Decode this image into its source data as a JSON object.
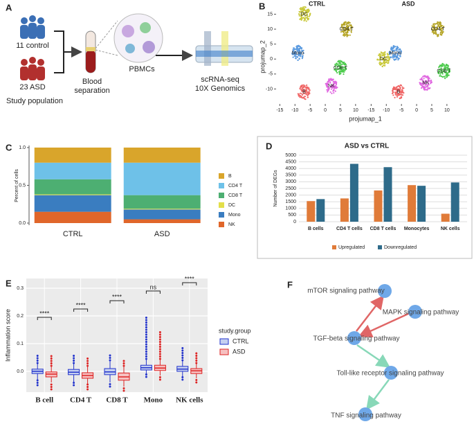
{
  "panel_labels": [
    "A",
    "B",
    "C",
    "D",
    "E",
    "F"
  ],
  "panel_a": {
    "control": "11 control",
    "asd": "23 ASD",
    "population": "Study population",
    "blood": [
      "Blood",
      "separation"
    ],
    "pbmc": "PBMCs",
    "seq": [
      "scRNA-seq",
      "10X Genomics"
    ]
  },
  "panel_f": {
    "nodes": [
      "mTOR signaling pathway",
      "MAPK signaling pathway",
      "TGF-beta signaling pathway",
      "Toll-like receptor signaling pathway",
      "TNF signaling pathway"
    ]
  },
  "chart_data": [
    {
      "type": "scatter",
      "xlabel": "projumap_1",
      "ylabel": "projumap_2",
      "xlim": [
        -16,
        13
      ],
      "ylim": [
        -15,
        16.5
      ],
      "xticks": [
        -15,
        -10,
        -5,
        0,
        5,
        10
      ],
      "yticks": [
        -10,
        -5,
        0,
        5,
        10,
        15
      ],
      "facets": [
        {
          "name": "CTRL",
          "clusters": [
            {
              "label": "DC",
              "x": -7,
              "y": 15,
              "color": "#c9c93a"
            },
            {
              "label": "CD4 T",
              "x": 7,
              "y": 10,
              "color": "#b5a526"
            },
            {
              "label": "Mono",
              "x": -9,
              "y": 2,
              "color": "#5b9be0"
            },
            {
              "label": "CD8 T",
              "x": 5,
              "y": -3,
              "color": "#4ccb4c"
            },
            {
              "label": "NK",
              "x": 2,
              "y": -9,
              "color": "#e066e0"
            },
            {
              "label": "B",
              "x": -7,
              "y": -11,
              "color": "#f06666"
            }
          ]
        },
        {
          "name": "ASD",
          "clusters": [
            {
              "label": "CD4 T",
              "x": 7,
              "y": 10,
              "color": "#b5a526"
            },
            {
              "label": "DC",
              "x": -11,
              "y": 0,
              "color": "#c9c93a"
            },
            {
              "label": "Mono",
              "x": -7,
              "y": 2,
              "color": "#5b9be0"
            },
            {
              "label": "CD8 T",
              "x": 9,
              "y": -4,
              "color": "#4ccb4c"
            },
            {
              "label": "NK",
              "x": 3,
              "y": -8,
              "color": "#e066e0"
            },
            {
              "label": "B",
              "x": -6,
              "y": -11,
              "color": "#f06666"
            }
          ]
        }
      ]
    },
    {
      "type": "stacked_bar",
      "ylabel": "Percent of cells",
      "categories": [
        "CTRL",
        "ASD"
      ],
      "ylim": [
        0,
        1
      ],
      "yticks": [
        {
          "value": 0,
          "label": "0.0"
        },
        {
          "value": 0.5,
          "label": "0.5"
        },
        {
          "value": 1,
          "label": "1.0"
        }
      ],
      "series": [
        {
          "name": "B",
          "color": "#d9a52b",
          "values": [
            0.2,
            0.2
          ]
        },
        {
          "name": "CD4 T",
          "color": "#6ec1e8",
          "values": [
            0.22,
            0.43
          ]
        },
        {
          "name": "CD8 T",
          "color": "#4daf72",
          "values": [
            0.2,
            0.18
          ]
        },
        {
          "name": "DC",
          "color": "#e3df4a",
          "values": [
            0.01,
            0.01
          ]
        },
        {
          "name": "Mono",
          "color": "#3a7dc0",
          "values": [
            0.22,
            0.13
          ]
        },
        {
          "name": "NK",
          "color": "#e0662a",
          "values": [
            0.15,
            0.05
          ]
        }
      ]
    },
    {
      "type": "bar",
      "title": "ASD vs CTRL",
      "ylabel": "Number of DEGs",
      "categories": [
        "B cells",
        "CD4 T cells",
        "CD8 T cells",
        "Monocytes",
        "NK cells"
      ],
      "ylim": [
        0,
        5000
      ],
      "yticks": [
        0,
        500,
        1000,
        1500,
        2000,
        2500,
        3000,
        3500,
        4000,
        4500,
        5000
      ],
      "grid": true,
      "series": [
        {
          "name": "Upregulated",
          "color": "#e07b39",
          "values": [
            1550,
            1750,
            2350,
            2750,
            600
          ]
        },
        {
          "name": "Downregulated",
          "color": "#2e6b8a",
          "values": [
            1700,
            4350,
            4100,
            2700,
            2950
          ]
        }
      ]
    },
    {
      "type": "box",
      "ylabel": "Inflammation score",
      "legend_title": "study.group",
      "categories": [
        "B cell",
        "CD4 T",
        "CD8 T",
        "Mono",
        "NK cells"
      ],
      "ylim": [
        -0.075,
        0.335
      ],
      "yticks": [
        {
          "value": 0,
          "label": "0.0"
        },
        0.1,
        0.2,
        0.3
      ],
      "grid": true,
      "annotations": [
        {
          "text": "****",
          "y": 0.195
        },
        {
          "text": "****",
          "y": 0.225
        },
        {
          "text": "****",
          "y": 0.255
        },
        {
          "text": "ns",
          "y": 0.29
        },
        {
          "text": "****",
          "y": 0.32
        }
      ],
      "series": [
        {
          "name": "CTRL",
          "color": "#2233cc",
          "fill": "#c5d0f0",
          "boxes": [
            {
              "low": -0.03,
              "q1": -0.008,
              "median": 0,
              "q3": 0.008,
              "high": 0.03,
              "outliers": [
                -0.05,
                0.06
              ]
            },
            {
              "low": -0.04,
              "q1": -0.012,
              "median": -0.003,
              "q3": 0.007,
              "high": 0.03,
              "outliers": [
                -0.05,
                0.06
              ]
            },
            {
              "low": -0.04,
              "q1": -0.012,
              "median": -0.002,
              "q3": 0.01,
              "high": 0.04,
              "outliers": [
                -0.055,
                0.06
              ]
            },
            {
              "low": -0.01,
              "q1": 0.005,
              "median": 0.013,
              "q3": 0.022,
              "high": 0.045,
              "outliers": [
                -0.02,
                0.2
              ]
            },
            {
              "low": -0.02,
              "q1": 0,
              "median": 0.008,
              "q3": 0.018,
              "high": 0.04,
              "outliers": [
                -0.03,
                0.09
              ]
            }
          ]
        },
        {
          "name": "ASD",
          "color": "#dd2222",
          "fill": "#f6c0c0",
          "boxes": [
            {
              "low": -0.04,
              "q1": -0.02,
              "median": -0.01,
              "q3": -0.002,
              "high": 0.02,
              "outliers": [
                -0.065,
                0.06
              ]
            },
            {
              "low": -0.045,
              "q1": -0.025,
              "median": -0.015,
              "q3": -0.005,
              "high": 0.02,
              "outliers": [
                -0.065,
                0.05
              ]
            },
            {
              "low": -0.055,
              "q1": -0.032,
              "median": -0.02,
              "q3": -0.006,
              "high": 0.02,
              "outliers": [
                -0.07,
                0.045
              ]
            },
            {
              "low": -0.015,
              "q1": 0.003,
              "median": 0.012,
              "q3": 0.022,
              "high": 0.045,
              "outliers": [
                -0.03,
                0.15
              ]
            },
            {
              "low": -0.025,
              "q1": -0.008,
              "median": 0.002,
              "q3": 0.01,
              "high": 0.03,
              "outliers": [
                -0.04,
                0.07
              ]
            }
          ]
        }
      ]
    }
  ]
}
